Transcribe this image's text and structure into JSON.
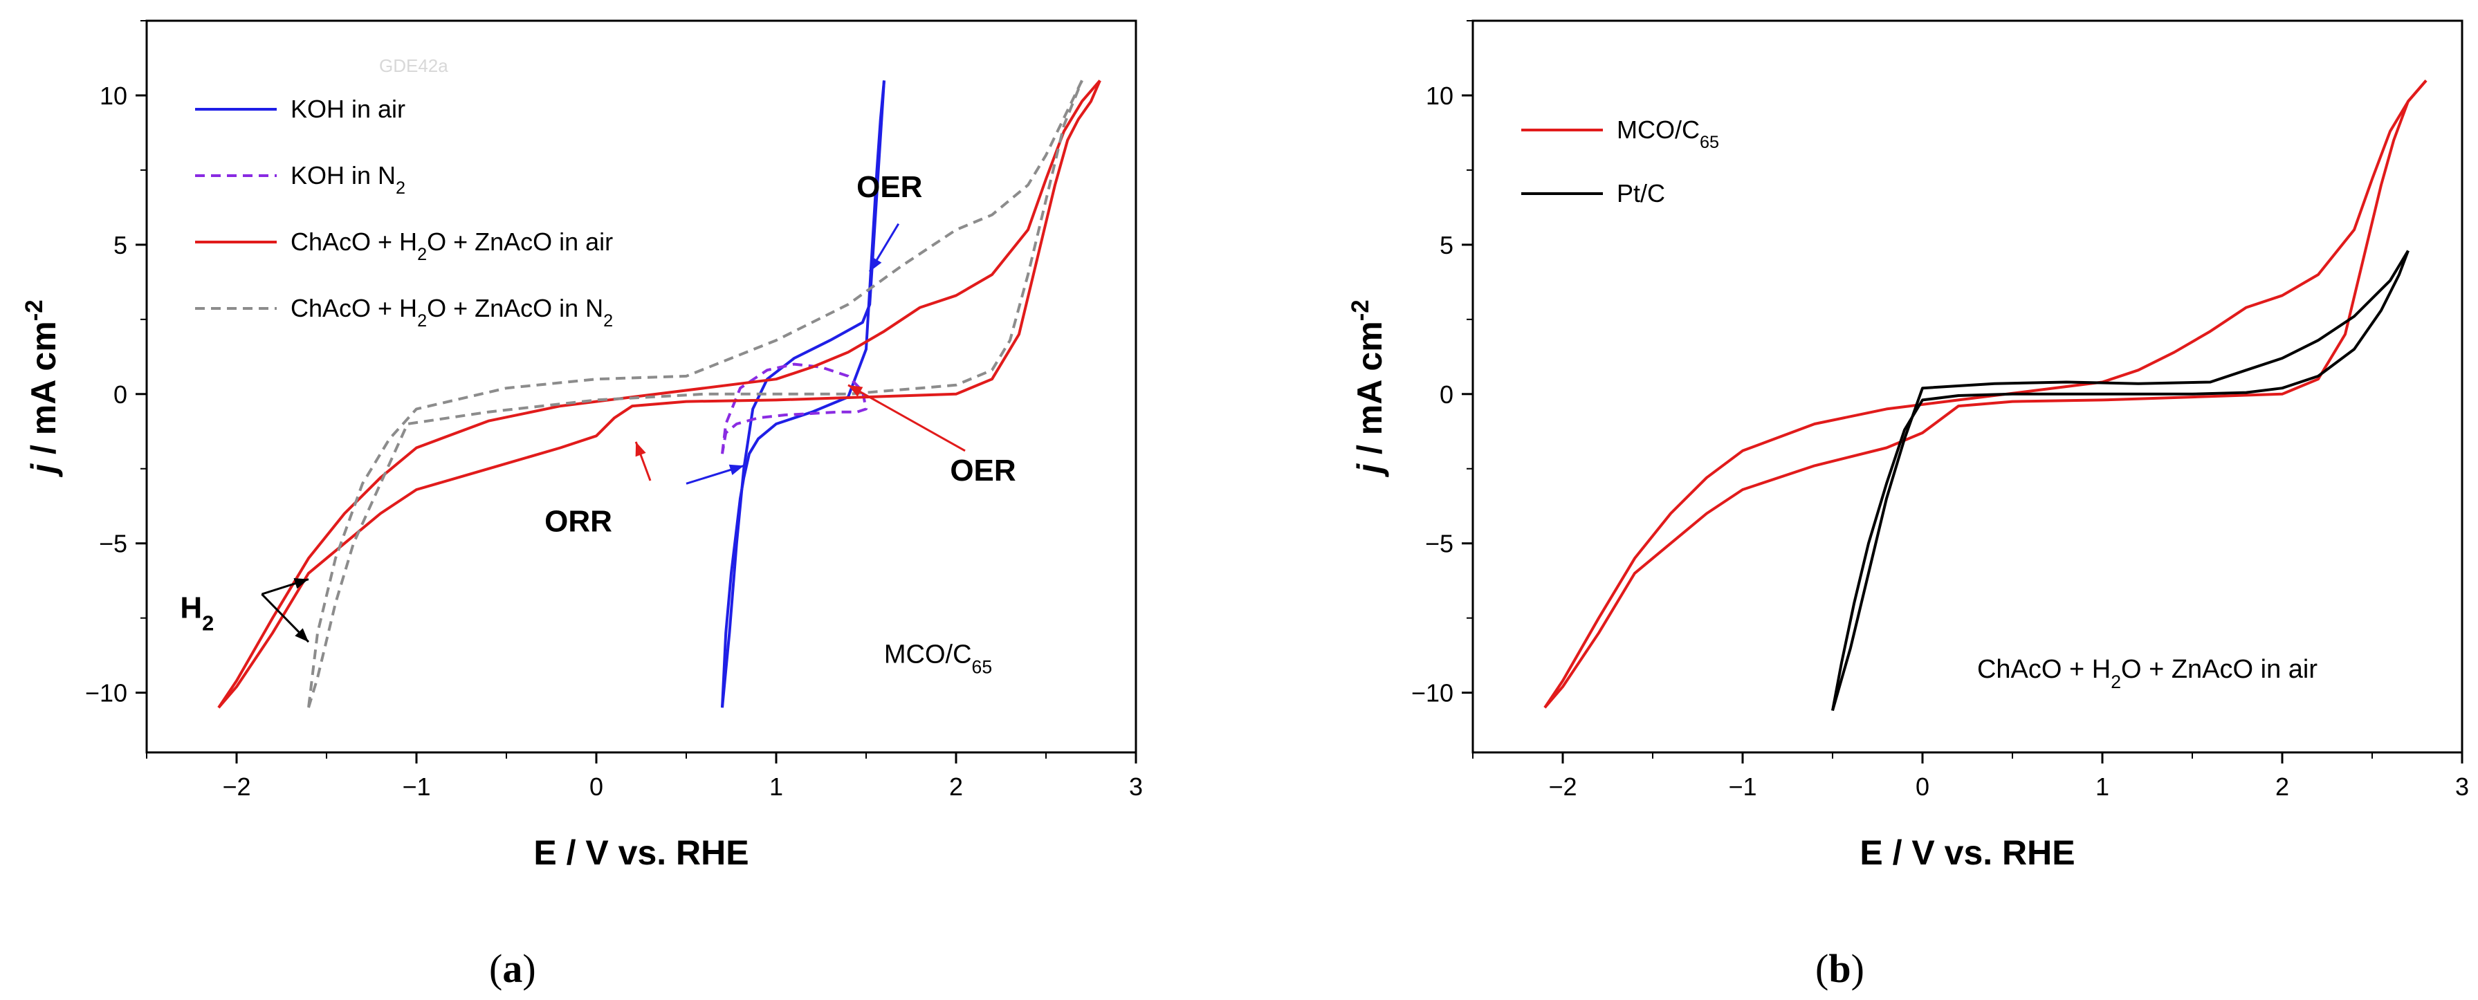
{
  "chart_data": [
    {
      "type": "line",
      "panel_label_prefix": "(",
      "panel_label_letter": "a",
      "panel_label_suffix": ")",
      "watermark": "GDE42a",
      "xlabel": "E / V vs. RHE",
      "ylabel_j": "j",
      "ylabel_unit": " / mA cm",
      "ylabel_exp": "-2",
      "xlim": [
        -2.5,
        3
      ],
      "ylim": [
        -12,
        12.5
      ],
      "xticks": [
        -2,
        -1,
        0,
        1,
        2,
        3
      ],
      "yticks": [
        -10,
        -5,
        0,
        5,
        10
      ],
      "grid": false,
      "legend_position": "top-left",
      "colors": {
        "blue": "#1f1fe6",
        "violet": "#8a2be2",
        "red": "#e11b1b",
        "gray": "#8c8c8c"
      },
      "legend": [
        {
          "text": "KOH in air",
          "color": "blue",
          "dash": false
        },
        {
          "text": "KOH in N",
          "sub": "2",
          "color": "violet",
          "dash": true
        },
        {
          "text": "ChAcO + H",
          "sub": "2",
          "text2": "O + ZnAcO in air",
          "color": "red",
          "dash": false
        },
        {
          "text": "ChAcO + H",
          "sub": "2",
          "text2": "O + ZnAcO in N",
          "sub2": "2",
          "color": "gray",
          "dash": true
        }
      ],
      "sample_label": "MCO/C",
      "sample_sub": "65",
      "annotations": [
        {
          "text": "OER",
          "x": 1.63,
          "y": 6.6
        },
        {
          "text": "OER",
          "x": 2.15,
          "y": -2.9
        },
        {
          "text": "ORR",
          "x": -0.1,
          "y": -4.6
        },
        {
          "text": "H",
          "sub": "2",
          "x": -2.22,
          "y": -7.5
        }
      ],
      "arrows": [
        {
          "color": "blue",
          "from": [
            1.68,
            5.7
          ],
          "to": [
            1.52,
            4.1
          ]
        },
        {
          "color": "red",
          "from": [
            2.05,
            -1.9
          ],
          "to": [
            1.4,
            0.3
          ]
        },
        {
          "color": "blue",
          "from": [
            0.5,
            -3.0
          ],
          "to": [
            0.82,
            -2.4
          ]
        },
        {
          "color": "red",
          "from": [
            0.3,
            -2.9
          ],
          "to": [
            0.22,
            -1.6
          ]
        },
        {
          "color": "black",
          "from": [
            -1.86,
            -6.7
          ],
          "to": [
            -1.6,
            -6.2
          ]
        },
        {
          "color": "black",
          "from": [
            -1.86,
            -6.7
          ],
          "to": [
            -1.6,
            -8.3
          ]
        }
      ],
      "series": [
        {
          "name": "KOH in air",
          "color": "blue",
          "dash": false,
          "x": [
            0.7,
            0.72,
            0.75,
            0.78,
            0.8,
            0.82,
            0.85,
            0.9,
            1.0,
            1.2,
            1.4,
            1.5,
            1.52,
            1.54,
            1.56,
            1.58,
            1.6
          ],
          "y": [
            -10.5,
            -8.0,
            -6.0,
            -4.5,
            -3.5,
            -2.8,
            -2.0,
            -1.5,
            -1.0,
            -0.6,
            -0.1,
            1.5,
            3.5,
            5.5,
            7.5,
            9.2,
            10.5
          ]
        },
        {
          "name": "KOH in air",
          "color": "blue",
          "dash": false,
          "x": [
            1.6,
            1.52,
            1.48,
            1.3,
            1.1,
            0.95,
            0.87,
            0.82,
            0.78,
            0.74,
            0.7
          ],
          "y": [
            10.5,
            3.0,
            2.4,
            1.8,
            1.2,
            0.5,
            -0.5,
            -2.5,
            -5.0,
            -8.0,
            -10.5
          ]
        },
        {
          "name": "KOH in N2",
          "color": "violet",
          "dash": true,
          "x": [
            0.7,
            0.72,
            0.8,
            0.95,
            1.1,
            1.25,
            1.4,
            1.48,
            1.5,
            1.45,
            1.35,
            1.2,
            1.05,
            0.9,
            0.78,
            0.72,
            0.7
          ],
          "y": [
            -2.0,
            -1.0,
            0.2,
            0.8,
            1.0,
            0.9,
            0.6,
            0.1,
            -0.5,
            -0.6,
            -0.6,
            -0.65,
            -0.7,
            -0.8,
            -1.0,
            -1.3,
            -2.0
          ]
        },
        {
          "name": "ChAcO + H2O + ZnAcO in air",
          "color": "red",
          "dash": false,
          "x": [
            -2.1,
            -2.0,
            -1.8,
            -1.6,
            -1.4,
            -1.2,
            -1.0,
            -0.6,
            -0.2,
            0.0,
            0.1,
            0.2,
            0.5,
            1.0,
            1.5,
            2.0,
            2.2,
            2.35,
            2.45,
            2.55,
            2.62,
            2.68,
            2.75,
            2.8
          ],
          "y": [
            -10.5,
            -9.8,
            -8.0,
            -6.0,
            -5.0,
            -4.0,
            -3.2,
            -2.5,
            -1.8,
            -1.4,
            -0.8,
            -0.4,
            -0.25,
            -0.2,
            -0.1,
            0.0,
            0.5,
            2.0,
            4.5,
            7.0,
            8.5,
            9.2,
            9.8,
            10.5
          ]
        },
        {
          "name": "ChAcO + H2O + ZnAcO in air",
          "color": "red",
          "dash": false,
          "x": [
            2.8,
            2.7,
            2.6,
            2.5,
            2.4,
            2.2,
            2.0,
            1.8,
            1.6,
            1.4,
            1.2,
            1.0,
            0.6,
            0.2,
            -0.2,
            -0.6,
            -1.0,
            -1.2,
            -1.4,
            -1.6,
            -1.8,
            -2.0,
            -2.1
          ],
          "y": [
            10.5,
            9.8,
            8.8,
            7.2,
            5.5,
            4.0,
            3.3,
            2.9,
            2.1,
            1.4,
            0.9,
            0.5,
            0.2,
            -0.1,
            -0.4,
            -0.9,
            -1.8,
            -2.8,
            -4.0,
            -5.5,
            -7.5,
            -9.6,
            -10.5
          ]
        },
        {
          "name": "ChAcO + H2O + ZnAcO in N2",
          "color": "gray",
          "dash": true,
          "x": [
            -1.6,
            -1.55,
            -1.45,
            -1.35,
            -1.2,
            -1.05,
            -0.6,
            0.0,
            0.6,
            1.0,
            1.4,
            1.8,
            2.0,
            2.2,
            2.3,
            2.4,
            2.5,
            2.6,
            2.7
          ],
          "y": [
            -10.5,
            -9.5,
            -7.0,
            -5.0,
            -3.0,
            -1.0,
            -0.6,
            -0.2,
            0.0,
            0.0,
            0.0,
            0.2,
            0.3,
            0.8,
            1.8,
            4.0,
            6.5,
            9.0,
            10.5
          ]
        },
        {
          "name": "ChAcO + H2O + ZnAcO in N2",
          "color": "gray",
          "dash": true,
          "x": [
            2.7,
            2.62,
            2.5,
            2.4,
            2.2,
            2.0,
            1.7,
            1.4,
            1.0,
            0.5,
            0.0,
            -0.5,
            -1.0,
            -1.15,
            -1.3,
            -1.45,
            -1.55,
            -1.6
          ],
          "y": [
            10.5,
            9.5,
            8.0,
            7.0,
            6.0,
            5.5,
            4.3,
            3.0,
            1.8,
            0.6,
            0.5,
            0.2,
            -0.5,
            -1.5,
            -3.0,
            -5.5,
            -8.0,
            -10.5
          ]
        }
      ]
    },
    {
      "type": "line",
      "panel_label_prefix": "(",
      "panel_label_letter": "b",
      "panel_label_suffix": ")",
      "xlabel": "E / V vs. RHE",
      "ylabel_j": "j",
      "ylabel_unit": " / mA cm",
      "ylabel_exp": "-2",
      "xlim": [
        -2.5,
        3
      ],
      "ylim": [
        -12,
        12.5
      ],
      "xticks": [
        -2,
        -1,
        0,
        1,
        2,
        3
      ],
      "yticks": [
        -10,
        -5,
        0,
        5,
        10
      ],
      "grid": false,
      "legend_position": "top-left",
      "colors": {
        "red": "#e11b1b",
        "black": "#000000"
      },
      "legend": [
        {
          "text": "MCO/C",
          "sub": "65",
          "color": "red",
          "dash": false
        },
        {
          "text": "Pt/C",
          "color": "black",
          "dash": false
        }
      ],
      "condition_label": "ChAcO + H",
      "condition_sub": "2",
      "condition_label2": "O + ZnAcO in air",
      "series": [
        {
          "name": "MCO/C65",
          "color": "red",
          "dash": false,
          "x": [
            -2.1,
            -2.0,
            -1.8,
            -1.6,
            -1.4,
            -1.2,
            -1.0,
            -0.6,
            -0.2,
            0.0,
            0.2,
            0.5,
            1.0,
            1.5,
            2.0,
            2.2,
            2.35,
            2.45,
            2.55,
            2.62,
            2.7,
            2.8
          ],
          "y": [
            -10.5,
            -9.8,
            -8.0,
            -6.0,
            -5.0,
            -4.0,
            -3.2,
            -2.4,
            -1.8,
            -1.3,
            -0.4,
            -0.25,
            -0.2,
            -0.1,
            0.0,
            0.5,
            2.0,
            4.5,
            7.0,
            8.5,
            9.8,
            10.5
          ]
        },
        {
          "name": "MCO/C65",
          "color": "red",
          "dash": false,
          "x": [
            2.8,
            2.7,
            2.6,
            2.5,
            2.4,
            2.2,
            2.0,
            1.8,
            1.6,
            1.4,
            1.2,
            1.0,
            0.6,
            0.2,
            -0.2,
            -0.6,
            -1.0,
            -1.2,
            -1.4,
            -1.6,
            -1.8,
            -2.0,
            -2.1
          ],
          "y": [
            10.5,
            9.8,
            8.8,
            7.2,
            5.5,
            4.0,
            3.3,
            2.9,
            2.1,
            1.4,
            0.8,
            0.4,
            0.1,
            -0.2,
            -0.5,
            -1.0,
            -1.9,
            -2.8,
            -4.0,
            -5.5,
            -7.5,
            -9.6,
            -10.5
          ]
        },
        {
          "name": "Pt/C",
          "color": "black",
          "dash": false,
          "x": [
            -0.5,
            -0.45,
            -0.38,
            -0.3,
            -0.2,
            -0.1,
            0.0,
            0.2,
            0.5,
            1.0,
            1.5,
            1.8,
            2.0,
            2.2,
            2.4,
            2.55,
            2.65,
            2.7
          ],
          "y": [
            -10.6,
            -9.0,
            -7.0,
            -5.0,
            -3.0,
            -1.2,
            -0.2,
            -0.05,
            0.0,
            0.0,
            0.0,
            0.05,
            0.2,
            0.6,
            1.5,
            2.8,
            4.0,
            4.8
          ]
        },
        {
          "name": "Pt/C",
          "color": "black",
          "dash": false,
          "x": [
            2.7,
            2.6,
            2.4,
            2.2,
            2.0,
            1.8,
            1.6,
            1.2,
            0.8,
            0.4,
            0.0,
            -0.1,
            -0.2,
            -0.3,
            -0.4,
            -0.5
          ],
          "y": [
            4.8,
            3.8,
            2.6,
            1.8,
            1.2,
            0.8,
            0.4,
            0.35,
            0.4,
            0.35,
            0.2,
            -1.5,
            -3.5,
            -6.0,
            -8.5,
            -10.6
          ]
        }
      ]
    }
  ]
}
